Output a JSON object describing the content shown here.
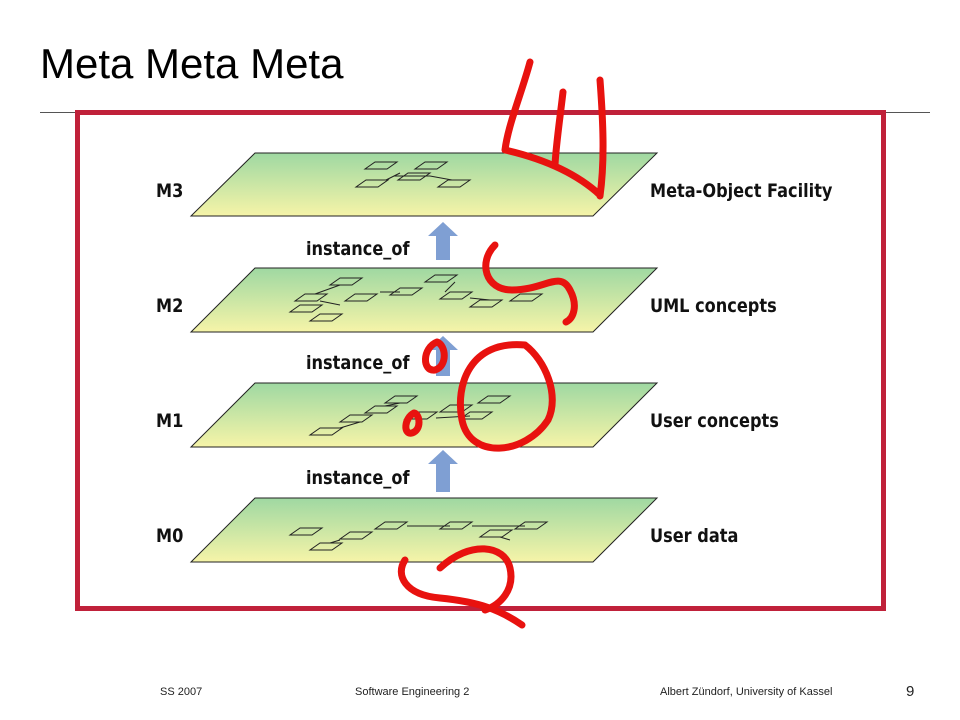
{
  "slide": {
    "title": "Meta Meta Meta"
  },
  "diagram": {
    "layers": [
      {
        "id": "M3",
        "label": "M3",
        "description": "Meta-Object Facility"
      },
      {
        "id": "M2",
        "label": "M2",
        "description": "UML concepts"
      },
      {
        "id": "M1",
        "label": "M1",
        "description": "User concepts"
      },
      {
        "id": "M0",
        "label": "M0",
        "description": "User data"
      }
    ],
    "relations": [
      {
        "label": "instance_of"
      },
      {
        "label": "instance_of"
      },
      {
        "label": "instance_of"
      }
    ],
    "colors": {
      "frame": "#c0213a",
      "arrow": "#7f9fd3",
      "plane_top": "#9fd8a2",
      "plane_bottom": "#f6f4a8",
      "ink": "#e8120f"
    }
  },
  "footer": {
    "semester": "SS 2007",
    "course": "Software Engineering 2",
    "author": "Albert Zündorf, University of Kassel",
    "page": "9"
  }
}
